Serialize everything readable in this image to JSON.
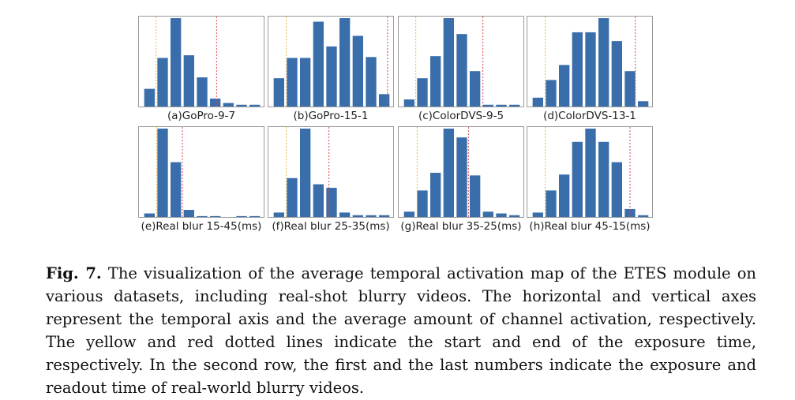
{
  "figure": {
    "colors": {
      "bar": "#3a6eab",
      "start_line": "#e8b64a",
      "end_line": "#d9444f",
      "frame": "#9a9a9a"
    },
    "chart_data": [
      {
        "type": "bar",
        "title": "(a)GoPro-9-7",
        "n_bins": 9,
        "values": [
          0.2,
          0.55,
          1.0,
          0.58,
          0.33,
          0.09,
          0.04,
          0.02,
          0.02
        ],
        "start_line_at": 1.0,
        "end_line_at": 5.6,
        "ylim": [
          0,
          1.0
        ]
      },
      {
        "type": "bar",
        "title": "(b)GoPro-15-1",
        "n_bins": 9,
        "values": [
          0.32,
          0.55,
          0.55,
          0.96,
          0.68,
          1.0,
          0.8,
          0.56,
          0.14
        ],
        "start_line_at": 1.05,
        "end_line_at": 8.75,
        "ylim": [
          0,
          1.0
        ]
      },
      {
        "type": "bar",
        "title": "(c)ColorDVS-9-5",
        "n_bins": 9,
        "values": [
          0.08,
          0.32,
          0.57,
          1.0,
          0.82,
          0.4,
          0.02,
          0.02,
          0.02
        ],
        "start_line_at": 1.0,
        "end_line_at": 6.1,
        "ylim": [
          0,
          1.0
        ]
      },
      {
        "type": "bar",
        "title": "(d)ColorDVS-13-1",
        "n_bins": 9,
        "values": [
          0.1,
          0.3,
          0.47,
          0.84,
          0.84,
          1.0,
          0.74,
          0.4,
          0.06
        ],
        "start_line_at": 1.05,
        "end_line_at": 7.9,
        "ylim": [
          0,
          1.0
        ]
      },
      {
        "type": "bar",
        "title": "(e)Real blur 15-45(ms)",
        "n_bins": 9,
        "values": [
          0.04,
          1.0,
          0.62,
          0.08,
          0.01,
          0.01,
          0.0,
          0.01,
          0.01
        ],
        "start_line_at": 1.05,
        "end_line_at": 3.0,
        "ylim": [
          0,
          1.0
        ]
      },
      {
        "type": "bar",
        "title": "(f)Real blur 25-35(ms)",
        "n_bins": 9,
        "values": [
          0.05,
          0.44,
          1.0,
          0.37,
          0.33,
          0.05,
          0.02,
          0.02,
          0.02
        ],
        "start_line_at": 1.05,
        "end_line_at": 4.3,
        "ylim": [
          0,
          1.0
        ]
      },
      {
        "type": "bar",
        "title": "(g)Real blur 35-25(ms)",
        "n_bins": 9,
        "values": [
          0.06,
          0.3,
          0.5,
          1.0,
          0.9,
          0.47,
          0.06,
          0.04,
          0.02
        ],
        "start_line_at": 1.1,
        "end_line_at": 5.0,
        "ylim": [
          0,
          1.0
        ]
      },
      {
        "type": "bar",
        "title": "(h)Real blur 45-15(ms)",
        "n_bins": 9,
        "values": [
          0.05,
          0.3,
          0.48,
          0.85,
          1.0,
          0.85,
          0.62,
          0.09,
          0.02
        ],
        "start_line_at": 1.05,
        "end_line_at": 7.5,
        "ylim": [
          0,
          1.0
        ]
      }
    ]
  },
  "caption": {
    "label": "Fig. 7.",
    "text": "The visualization of the average temporal activation map of the ETES module on various datasets, including real-shot blurry videos. The horizontal and vertical axes represent the temporal axis and the average amount of channel activation, respectively. The yellow and red dotted lines indicate the start and end of the exposure time, respectively. In the second row, the first and the last numbers indicate the exposure and readout time of real-world blurry videos."
  }
}
